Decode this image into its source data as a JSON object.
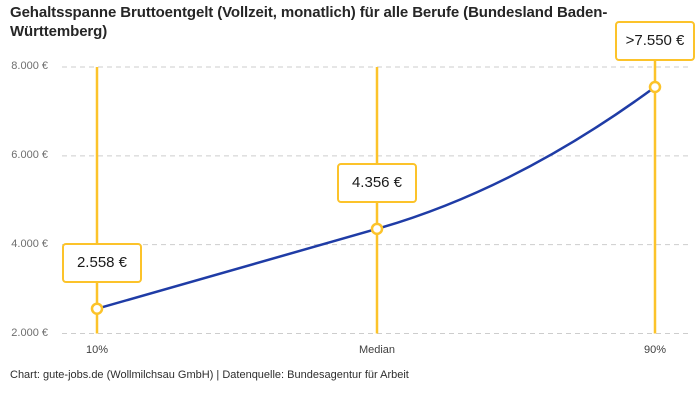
{
  "title": "Gehaltsspanne Bruttoentgelt (Vollzeit, monatlich) für alle Berufe (Bundesland Baden-Württemberg)",
  "footer": "Chart: gute-jobs.de (Wollmilchsau GmbH) | Datenquelle: Bundesagentur für Arbeit",
  "colors": {
    "accent_yellow": "#FCC32A",
    "line_blue": "#1F3CA6",
    "grid_gray": "#CDCDCD",
    "title_text": "#262626",
    "y_tick_text": "#6E6E6E",
    "x_tick_text": "#3F3F3F",
    "value_text": "#1A1A1A",
    "background": "#FFFFFF"
  },
  "chart_data": {
    "type": "line",
    "curve": "smooth",
    "title": "Gehaltsspanne Bruttoentgelt (Vollzeit, monatlich) für alle Berufe (Bundesland Baden-Württemberg)",
    "xlabel": "",
    "ylabel": "",
    "categories": [
      "10%",
      "Median",
      "90%"
    ],
    "values": [
      2558,
      4356,
      7550
    ],
    "point_labels": [
      "2.558 €",
      "4.356 €",
      ">7.550 €"
    ],
    "series_name": "Bruttoentgelt",
    "ylim": [
      2000,
      8000
    ],
    "y_ticks": [
      {
        "value": 8000,
        "label": "8.000 €"
      },
      {
        "value": 6000,
        "label": "6.000 €"
      },
      {
        "value": 4000,
        "label": "4.000 €"
      },
      {
        "value": 2000,
        "label": "2.000 €"
      }
    ],
    "grid": "horizontal-dashed",
    "legend": "none",
    "marker": "open-circle",
    "annotations": "vertical percentile guides in yellow with value boxes"
  }
}
